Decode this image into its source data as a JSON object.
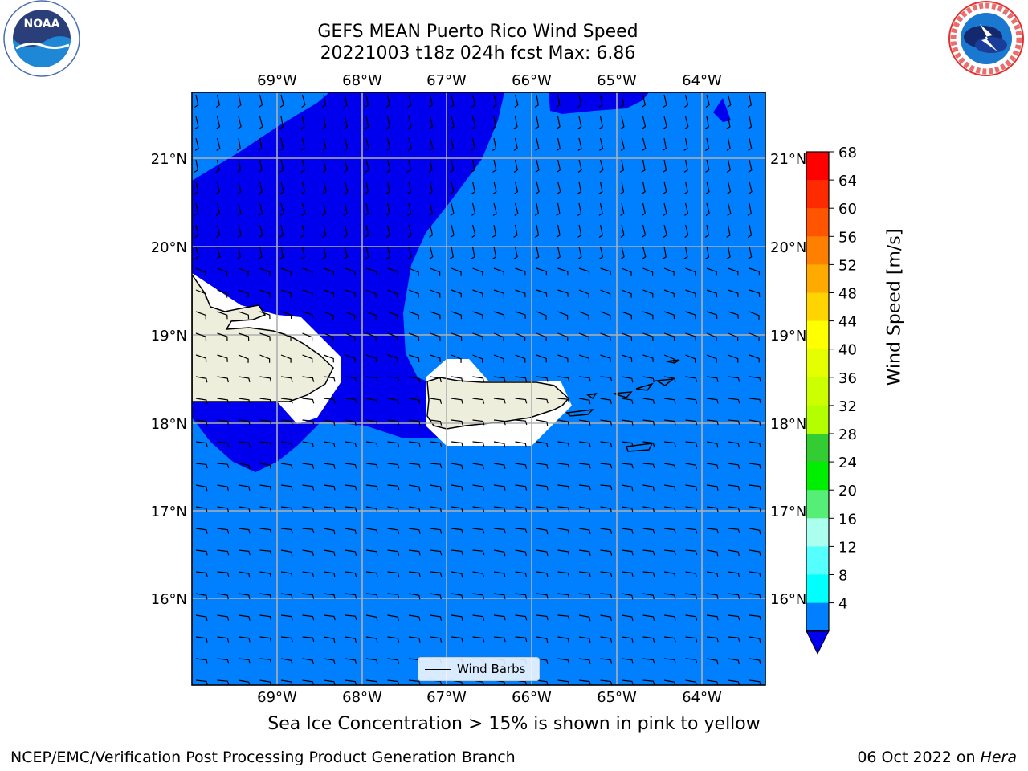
{
  "title": {
    "line1": "GEFS MEAN Puerto Rico Wind Speed",
    "line2": "20221003 t18z 024h fcst   Max: 6.86"
  },
  "logos": {
    "left": "noaa-logo",
    "right": "national-weather-service-logo"
  },
  "map": {
    "lon_labels": [
      "69°W",
      "68°W",
      "67°W",
      "66°W",
      "65°W",
      "64°W"
    ],
    "lat_labels": [
      "21°N",
      "20°N",
      "19°N",
      "18°N",
      "17°N",
      "16°N"
    ],
    "colors": {
      "ocean_4_8": "#0080ff",
      "dark_below_4": "#0000ee",
      "land": "#eeeedd",
      "grid": "#b0b0b0"
    }
  },
  "legend": {
    "label": "Wind Barbs"
  },
  "colorbar": {
    "label": "Wind Speed [m/s]",
    "ticks": [
      "68",
      "64",
      "60",
      "56",
      "52",
      "48",
      "44",
      "40",
      "36",
      "32",
      "28",
      "24",
      "20",
      "16",
      "12",
      "8",
      "4"
    ],
    "colors": [
      "#ff0000",
      "#ff2b00",
      "#ff5500",
      "#ff8000",
      "#ffaa00",
      "#ffd400",
      "#ffff00",
      "#e6ff00",
      "#ccff00",
      "#b3ff00",
      "#33cc33",
      "#00ee00",
      "#55ee77",
      "#aaffee",
      "#55ffff",
      "#00ffff",
      "#0080ff"
    ],
    "under_color": "#0000ee"
  },
  "footer": {
    "note": "Sea Ice Concentration > 15% is shown in pink to yellow",
    "left": "NCEP/EMC/Verification Post Processing Product Generation Branch",
    "right_date": "06 Oct 2022 on ",
    "right_machine": "Hera"
  }
}
